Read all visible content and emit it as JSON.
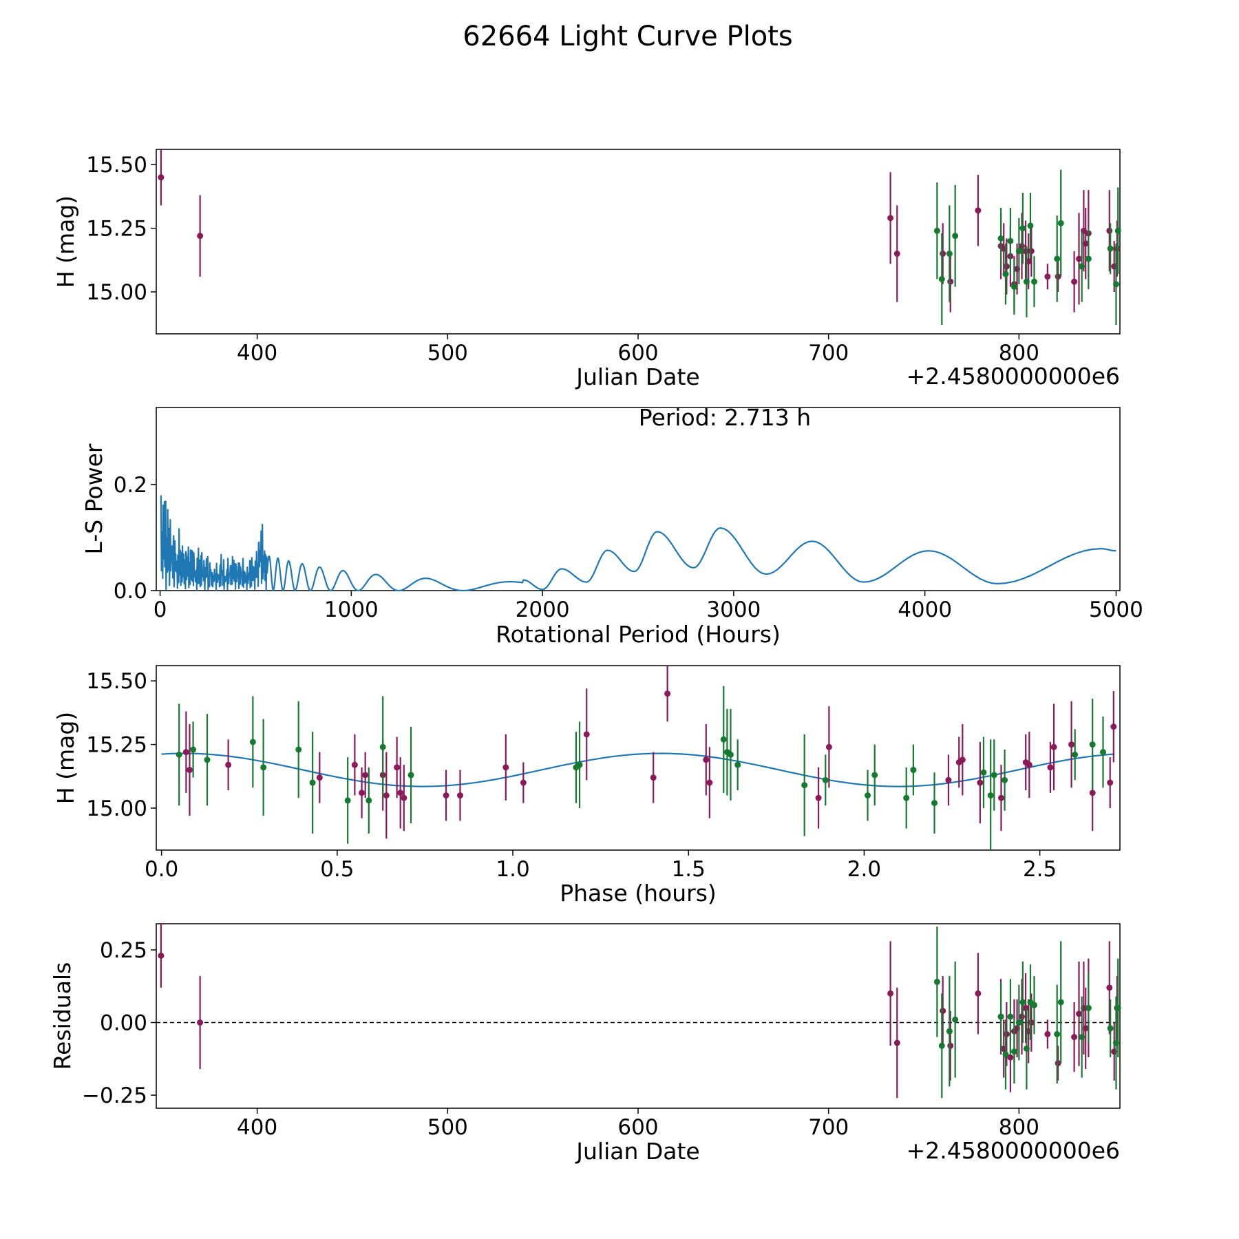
{
  "title": "62664 Light Curve Plots",
  "colors": {
    "magenta": "#8b1a5a",
    "green": "#157a2f",
    "curve": "#1f77b4",
    "axis": "#000000"
  },
  "chart_data": [
    {
      "type": "scatter",
      "name": "lightcurve",
      "xlabel": "Julian Date",
      "ylabel": "H (mag)",
      "offset_text": "+2.4580000000e6",
      "xlim": [
        347,
        853
      ],
      "ylim": [
        14.835,
        15.56
      ],
      "xticks": [
        400,
        500,
        600,
        700,
        800
      ],
      "xtick_labels": [
        "400",
        "500",
        "600",
        "700",
        "800"
      ],
      "yticks": [
        15.0,
        15.25,
        15.5
      ],
      "ytick_labels": [
        "15.00",
        "15.25",
        "15.50"
      ],
      "series": [
        {
          "name": "magenta",
          "x": [
            349.5,
            370.0,
            732.5,
            736.0,
            760.0,
            764.0,
            778.5,
            790.5,
            792.0,
            793.5,
            795.5,
            797.5,
            799.0,
            801.5,
            803.5,
            805.0,
            806.5,
            815.0,
            820.5,
            829.0,
            831.5,
            834.0,
            835.0,
            836.5,
            847.5,
            850.0,
            851.5
          ],
          "y": [
            15.45,
            15.22,
            15.29,
            15.15,
            15.15,
            15.04,
            15.32,
            15.18,
            15.17,
            15.1,
            15.14,
            15.03,
            15.09,
            15.18,
            15.16,
            15.12,
            15.16,
            15.06,
            15.06,
            15.04,
            15.13,
            15.24,
            15.19,
            15.23,
            15.24,
            15.1,
            15.17
          ],
          "err": [
            0.11,
            0.16,
            0.18,
            0.19,
            0.12,
            0.12,
            0.14,
            0.13,
            0.1,
            0.11,
            0.12,
            0.11,
            0.1,
            0.13,
            0.12,
            0.11,
            0.1,
            0.05,
            0.06,
            0.12,
            0.18,
            0.16,
            0.14,
            0.17,
            0.16,
            0.1,
            0.11
          ]
        },
        {
          "name": "green",
          "x": [
            757.0,
            759.5,
            763.5,
            766.5,
            790.5,
            793.0,
            795.5,
            797.5,
            800.0,
            802.0,
            804.0,
            806.0,
            808.0,
            820.0,
            822.0,
            833.0,
            836.5,
            848.0,
            851.0,
            852.0
          ],
          "y": [
            15.24,
            15.05,
            15.15,
            15.22,
            15.21,
            15.07,
            15.2,
            15.02,
            15.16,
            15.25,
            15.04,
            15.26,
            15.04,
            15.13,
            15.27,
            15.1,
            15.13,
            15.17,
            15.03,
            15.24
          ],
          "err": [
            0.19,
            0.18,
            0.19,
            0.2,
            0.12,
            0.12,
            0.13,
            0.11,
            0.13,
            0.14,
            0.14,
            0.13,
            0.1,
            0.17,
            0.21,
            0.14,
            0.12,
            0.1,
            0.16,
            0.17
          ]
        }
      ]
    },
    {
      "type": "line",
      "name": "periodogram",
      "xlabel": "Rotational Period (Hours)",
      "ylabel": "L-S Power",
      "annotation": "Period: 2.713 h",
      "xlim": [
        -20,
        5020
      ],
      "ylim": [
        0.0,
        0.345
      ],
      "xticks": [
        0,
        1000,
        2000,
        3000,
        4000,
        5000
      ],
      "xtick_labels": [
        "0",
        "1000",
        "2000",
        "3000",
        "4000",
        "5000"
      ],
      "yticks": [
        0.0,
        0.2
      ],
      "ytick_labels": [
        "0.0",
        "0.2"
      ],
      "peaks_x": [
        2100,
        2340,
        2600,
        2930,
        3410,
        4020,
        4920
      ],
      "peaks_y": [
        0.041,
        0.076,
        0.111,
        0.118,
        0.093,
        0.075,
        0.079
      ],
      "troughs_x": [
        2230,
        2480,
        2790,
        3170,
        3680,
        4380,
        5000
      ],
      "troughs_y": [
        0.016,
        0.036,
        0.043,
        0.031,
        0.016,
        0.013,
        0.075
      ]
    },
    {
      "type": "scatter",
      "name": "phased",
      "xlabel": "Phase (hours)",
      "ylabel": "H (mag)",
      "xlim": [
        -0.015,
        2.728
      ],
      "ylim": [
        14.835,
        15.56
      ],
      "xticks": [
        0.0,
        0.5,
        1.0,
        1.5,
        2.0,
        2.5
      ],
      "xtick_labels": [
        "0.0",
        "0.5",
        "1.0",
        "1.5",
        "2.0",
        "2.5"
      ],
      "yticks": [
        15.0,
        15.25,
        15.5
      ],
      "ytick_labels": [
        "15.00",
        "15.25",
        "15.50"
      ],
      "model": {
        "mean": 15.15,
        "amplitude": 0.065,
        "period": 1.356,
        "peak_phase": 1.42
      },
      "series": [
        {
          "name": "magenta",
          "x": [
            0.07,
            0.08,
            0.19,
            0.45,
            0.55,
            0.57,
            0.58,
            0.63,
            0.64,
            0.67,
            0.68,
            0.69,
            0.81,
            0.85,
            0.98,
            1.03,
            1.21,
            1.4,
            1.44,
            1.55,
            1.56,
            1.87,
            1.9,
            2.24,
            2.27,
            2.28,
            2.33,
            2.39,
            2.46,
            2.47,
            2.53,
            2.54,
            2.59,
            2.65,
            2.7,
            2.71
          ],
          "y": [
            15.22,
            15.15,
            15.17,
            15.12,
            15.17,
            15.06,
            15.13,
            15.13,
            15.05,
            15.16,
            15.06,
            15.04,
            15.05,
            15.05,
            15.16,
            15.1,
            15.29,
            15.12,
            15.45,
            15.19,
            15.1,
            15.04,
            15.24,
            15.11,
            15.18,
            15.19,
            15.1,
            15.04,
            15.18,
            15.17,
            15.16,
            15.24,
            15.25,
            15.06,
            15.1,
            15.32
          ],
          "err": [
            0.16,
            0.18,
            0.1,
            0.1,
            0.12,
            0.1,
            0.09,
            0.14,
            0.17,
            0.12,
            0.14,
            0.13,
            0.1,
            0.1,
            0.13,
            0.08,
            0.18,
            0.1,
            0.11,
            0.14,
            0.14,
            0.12,
            0.16,
            0.1,
            0.1,
            0.14,
            0.16,
            0.13,
            0.11,
            0.13,
            0.1,
            0.17,
            0.17,
            0.15,
            0.1,
            0.14
          ]
        },
        {
          "name": "green",
          "x": [
            0.05,
            0.09,
            0.13,
            0.26,
            0.29,
            0.39,
            0.43,
            0.53,
            0.59,
            0.63,
            0.71,
            1.18,
            1.19,
            1.6,
            1.61,
            1.62,
            1.64,
            1.83,
            1.89,
            2.01,
            2.03,
            2.12,
            2.14,
            2.2,
            2.34,
            2.36,
            2.37,
            2.4,
            2.6,
            2.65,
            2.68
          ],
          "y": [
            15.21,
            15.23,
            15.19,
            15.26,
            15.16,
            15.23,
            15.1,
            15.03,
            15.03,
            15.24,
            15.13,
            15.16,
            15.17,
            15.27,
            15.22,
            15.21,
            15.17,
            15.09,
            15.11,
            15.05,
            15.13,
            15.04,
            15.15,
            15.02,
            15.14,
            15.05,
            15.13,
            15.11,
            15.21,
            15.25,
            15.22
          ],
          "err": [
            0.2,
            0.11,
            0.18,
            0.18,
            0.19,
            0.19,
            0.2,
            0.17,
            0.13,
            0.2,
            0.19,
            0.14,
            0.17,
            0.21,
            0.17,
            0.18,
            0.1,
            0.2,
            0.1,
            0.1,
            0.12,
            0.12,
            0.1,
            0.12,
            0.14,
            0.22,
            0.14,
            0.12,
            0.1,
            0.18,
            0.14
          ]
        }
      ]
    },
    {
      "type": "scatter",
      "name": "residuals",
      "xlabel": "Julian Date",
      "ylabel": "Residuals",
      "offset_text": "+2.4580000000e6",
      "xlim": [
        347,
        853
      ],
      "ylim": [
        -0.295,
        0.34
      ],
      "xticks": [
        400,
        500,
        600,
        700,
        800
      ],
      "xtick_labels": [
        "400",
        "500",
        "600",
        "700",
        "800"
      ],
      "yticks": [
        -0.25,
        0.0,
        0.25
      ],
      "ytick_labels": [
        "−0.25",
        "0.00",
        "0.25"
      ],
      "zero_line": 0.0,
      "series": [
        {
          "name": "magenta",
          "x": [
            349.5,
            370.0,
            732.5,
            736.0,
            760.0,
            764.0,
            778.5,
            790.5,
            792.0,
            793.5,
            795.5,
            797.5,
            799.0,
            801.5,
            803.5,
            805.0,
            806.5,
            815.0,
            820.5,
            829.0,
            831.5,
            834.0,
            835.0,
            836.5,
            847.5,
            850.0,
            851.5
          ],
          "y": [
            0.23,
            0.0,
            0.1,
            -0.07,
            0.04,
            -0.08,
            0.1,
            0.02,
            -0.09,
            -0.04,
            -0.12,
            -0.03,
            -0.02,
            0.02,
            0.05,
            -0.03,
            0.0,
            -0.04,
            -0.14,
            -0.05,
            0.03,
            0.05,
            -0.02,
            0.05,
            0.12,
            -0.1,
            0.05
          ],
          "err": [
            0.11,
            0.16,
            0.18,
            0.19,
            0.12,
            0.12,
            0.14,
            0.13,
            0.1,
            0.11,
            0.12,
            0.11,
            0.1,
            0.13,
            0.12,
            0.11,
            0.1,
            0.05,
            0.06,
            0.12,
            0.18,
            0.16,
            0.14,
            0.17,
            0.16,
            0.1,
            0.11
          ]
        },
        {
          "name": "green",
          "x": [
            757.0,
            759.5,
            763.5,
            766.5,
            790.5,
            793.0,
            795.5,
            797.5,
            800.0,
            802.0,
            804.0,
            806.0,
            808.0,
            820.0,
            822.0,
            833.0,
            836.5,
            848.0,
            851.0,
            852.0
          ],
          "y": [
            0.14,
            -0.08,
            -0.03,
            0.01,
            0.02,
            -0.11,
            0.02,
            -0.1,
            0.0,
            0.07,
            -0.09,
            0.07,
            0.06,
            -0.04,
            0.07,
            -0.05,
            0.05,
            -0.02,
            -0.07,
            0.05
          ],
          "err": [
            0.19,
            0.18,
            0.19,
            0.2,
            0.12,
            0.12,
            0.13,
            0.11,
            0.13,
            0.14,
            0.14,
            0.13,
            0.1,
            0.17,
            0.21,
            0.14,
            0.12,
            0.1,
            0.16,
            0.17
          ]
        }
      ]
    }
  ]
}
